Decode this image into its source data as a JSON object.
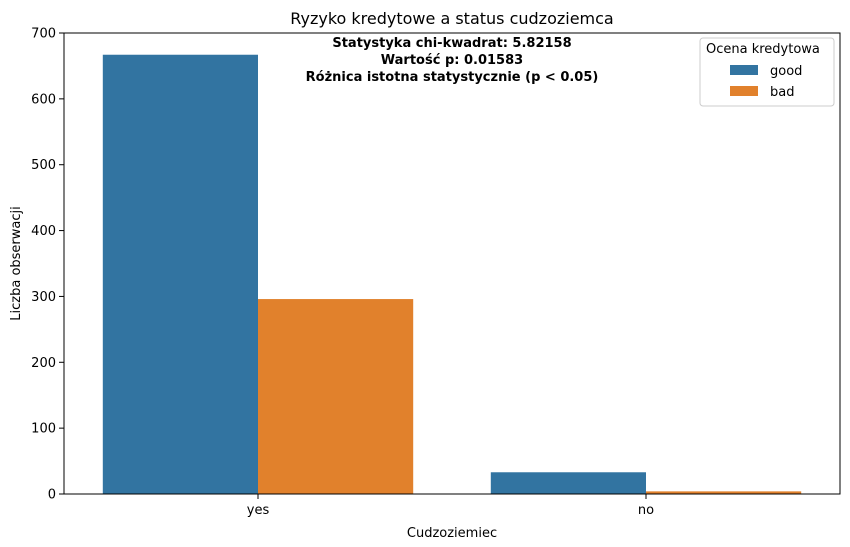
{
  "chart_data": {
    "type": "bar",
    "title": "Ryzyko kredytowe a status cudzoziemca",
    "xlabel": "Cudzoziemiec",
    "ylabel": "Liczba obserwacji",
    "categories": [
      "yes",
      "no"
    ],
    "series": [
      {
        "name": "good",
        "values": [
          667,
          33
        ],
        "color": "#3274a1"
      },
      {
        "name": "bad",
        "values": [
          296,
          4
        ],
        "color": "#e1812c"
      }
    ],
    "ylim": [
      0,
      700
    ],
    "yticks": [
      0,
      100,
      200,
      300,
      400,
      500,
      600,
      700
    ],
    "grid": false,
    "legend": {
      "title": "Ocena kredytowa",
      "placement": "top-right"
    },
    "annotations": [
      "Statystyka chi-kwadrat: 5.82158",
      "Wartość p: 0.01583",
      "Różnica istotna statystycznie (p < 0.05)"
    ]
  }
}
